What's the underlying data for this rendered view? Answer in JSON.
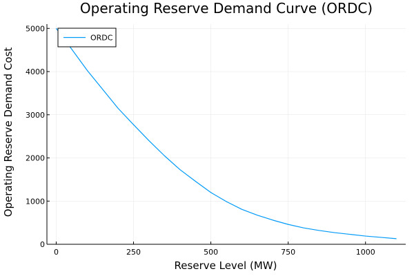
{
  "chart_data": {
    "type": "line",
    "title": "Operating Reserve Demand Curve (ORDC)",
    "xlabel": "Reserve Level (MW)",
    "ylabel": "Operating Reserve Demand Cost",
    "xlim": [
      -30,
      1130
    ],
    "ylim": [
      0,
      5100
    ],
    "xticks": [
      0,
      250,
      500,
      750,
      1000
    ],
    "yticks": [
      0,
      1000,
      2000,
      3000,
      4000,
      5000
    ],
    "x_tick_labels": [
      "0",
      "250",
      "500",
      "750",
      "1000"
    ],
    "y_tick_labels": [
      "0",
      "1000",
      "2000",
      "3000",
      "4000",
      "5000"
    ],
    "grid": true,
    "legend": "top-left",
    "series": [
      {
        "name": "ORDC",
        "color": "#009AF9",
        "x": [
          0,
          50,
          100,
          150,
          200,
          250,
          300,
          350,
          400,
          450,
          500,
          550,
          600,
          650,
          700,
          750,
          800,
          850,
          900,
          950,
          1000,
          1050,
          1100
        ],
        "y": [
          5000,
          4520,
          4030,
          3590,
          3150,
          2770,
          2400,
          2050,
          1730,
          1460,
          1200,
          990,
          810,
          675,
          560,
          460,
          380,
          320,
          270,
          230,
          190,
          160,
          130
        ]
      }
    ]
  }
}
